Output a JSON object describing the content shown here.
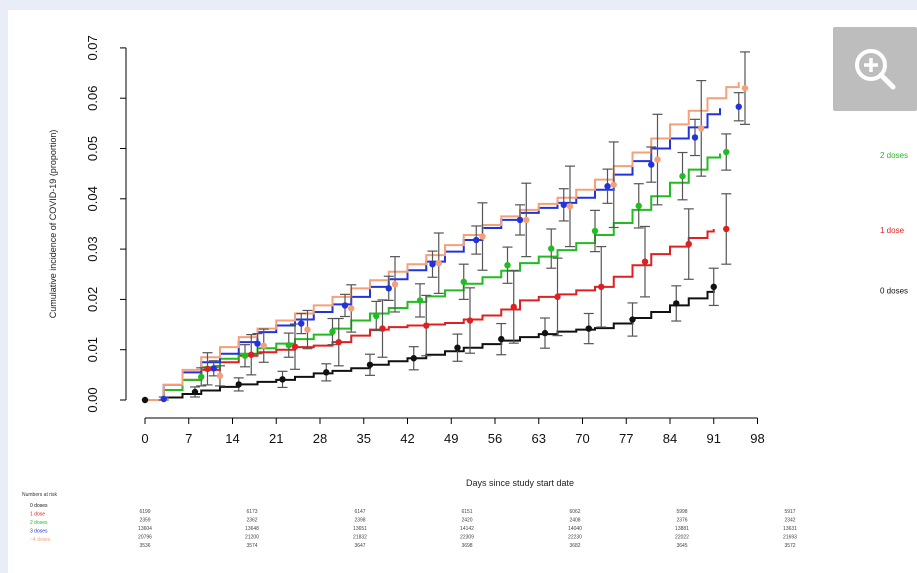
{
  "chart_data": {
    "type": "line",
    "title": "",
    "xlabel": "Days since study start date",
    "ylabel": "Cumulative incidence of COVID-19 (proportion)",
    "xlim": [
      0,
      98
    ],
    "ylim": [
      0,
      0.07
    ],
    "x_ticks": [
      0,
      7,
      14,
      21,
      28,
      35,
      42,
      49,
      56,
      63,
      70,
      77,
      84,
      91,
      98
    ],
    "y_ticks": [
      "0.00",
      "0.01",
      "0.02",
      "0.03",
      "0.04",
      "0.05",
      "0.06",
      "0.07"
    ],
    "grid": false,
    "legend": "end-of-line labels",
    "series": [
      {
        "name": "0 doses",
        "color": "#111111",
        "x": [
          0,
          3,
          6,
          9,
          12,
          15,
          18,
          21,
          24,
          27,
          30,
          33,
          36,
          39,
          42,
          45,
          48,
          51,
          54,
          57,
          60,
          63,
          66,
          69,
          72,
          75,
          78,
          81,
          84,
          87,
          90,
          91
        ],
        "y": [
          0,
          0.0005,
          0.0012,
          0.0019,
          0.0026,
          0.0031,
          0.0036,
          0.004,
          0.0046,
          0.0053,
          0.0058,
          0.0063,
          0.007,
          0.0077,
          0.0083,
          0.009,
          0.0097,
          0.0104,
          0.0111,
          0.0118,
          0.0125,
          0.0131,
          0.0136,
          0.014,
          0.0143,
          0.0152,
          0.0163,
          0.0175,
          0.0188,
          0.0202,
          0.0215,
          0.022
        ],
        "points": [
          {
            "x": 0,
            "y": 0,
            "lo": 0,
            "hi": 0
          },
          {
            "x": 8,
            "y": 0.0016,
            "lo": 0.0006,
            "hi": 0.0026
          },
          {
            "x": 15,
            "y": 0.0031,
            "lo": 0.0018,
            "hi": 0.0044
          },
          {
            "x": 22,
            "y": 0.0041,
            "lo": 0.0025,
            "hi": 0.0057
          },
          {
            "x": 29,
            "y": 0.0055,
            "lo": 0.0038,
            "hi": 0.0072
          },
          {
            "x": 36,
            "y": 0.007,
            "lo": 0.0049,
            "hi": 0.0091
          },
          {
            "x": 43,
            "y": 0.0083,
            "lo": 0.006,
            "hi": 0.0106
          },
          {
            "x": 50,
            "y": 0.0104,
            "lo": 0.0077,
            "hi": 0.0131
          },
          {
            "x": 57,
            "y": 0.0121,
            "lo": 0.009,
            "hi": 0.0152
          },
          {
            "x": 64,
            "y": 0.0133,
            "lo": 0.0103,
            "hi": 0.0163
          },
          {
            "x": 71,
            "y": 0.0142,
            "lo": 0.0112,
            "hi": 0.0172
          },
          {
            "x": 78,
            "y": 0.016,
            "lo": 0.0127,
            "hi": 0.0193
          },
          {
            "x": 85,
            "y": 0.0192,
            "lo": 0.0157,
            "hi": 0.0227
          },
          {
            "x": 91,
            "y": 0.0225,
            "lo": 0.0188,
            "hi": 0.0262
          }
        ]
      },
      {
        "name": "1 dose",
        "color": "#e02020",
        "x": [
          0,
          3,
          6,
          9,
          12,
          15,
          18,
          21,
          24,
          27,
          30,
          33,
          36,
          39,
          42,
          45,
          48,
          51,
          54,
          57,
          60,
          63,
          66,
          69,
          72,
          75,
          78,
          81,
          84,
          87,
          90,
          91
        ],
        "y": [
          0,
          0.002,
          0.004,
          0.006,
          0.0075,
          0.0088,
          0.0095,
          0.01,
          0.0105,
          0.0108,
          0.0115,
          0.0128,
          0.014,
          0.0145,
          0.0148,
          0.015,
          0.0153,
          0.016,
          0.0168,
          0.018,
          0.0198,
          0.0205,
          0.021,
          0.0218,
          0.0225,
          0.0245,
          0.0268,
          0.029,
          0.0305,
          0.0322,
          0.0335,
          0.034
        ],
        "points": [
          {
            "x": 10,
            "y": 0.0062,
            "lo": 0.003,
            "hi": 0.0094
          },
          {
            "x": 17,
            "y": 0.009,
            "lo": 0.005,
            "hi": 0.013
          },
          {
            "x": 24,
            "y": 0.0106,
            "lo": 0.0061,
            "hi": 0.0151
          },
          {
            "x": 31,
            "y": 0.0115,
            "lo": 0.0068,
            "hi": 0.0162
          },
          {
            "x": 38,
            "y": 0.0142,
            "lo": 0.0085,
            "hi": 0.0199
          },
          {
            "x": 45,
            "y": 0.0148,
            "lo": 0.0088,
            "hi": 0.0208
          },
          {
            "x": 52,
            "y": 0.0158,
            "lo": 0.0093,
            "hi": 0.0223
          },
          {
            "x": 59,
            "y": 0.0185,
            "lo": 0.0113,
            "hi": 0.0257
          },
          {
            "x": 66,
            "y": 0.0205,
            "lo": 0.0128,
            "hi": 0.0282
          },
          {
            "x": 73,
            "y": 0.0225,
            "lo": 0.0145,
            "hi": 0.0305
          },
          {
            "x": 80,
            "y": 0.0275,
            "lo": 0.0205,
            "hi": 0.0345
          },
          {
            "x": 87,
            "y": 0.031,
            "lo": 0.024,
            "hi": 0.038
          },
          {
            "x": 93,
            "y": 0.034,
            "lo": 0.027,
            "hi": 0.041
          }
        ]
      },
      {
        "name": "2 doses",
        "color": "#22bb22",
        "x": [
          0,
          3,
          6,
          9,
          12,
          15,
          18,
          21,
          24,
          27,
          30,
          33,
          36,
          39,
          42,
          45,
          48,
          51,
          54,
          57,
          60,
          63,
          66,
          69,
          72,
          75,
          78,
          81,
          84,
          87,
          90,
          92
        ],
        "y": [
          0,
          0.002,
          0.004,
          0.0065,
          0.0082,
          0.0092,
          0.0103,
          0.0112,
          0.0121,
          0.013,
          0.0142,
          0.0158,
          0.0172,
          0.0183,
          0.0195,
          0.0206,
          0.0218,
          0.0231,
          0.0244,
          0.0257,
          0.0272,
          0.0285,
          0.0298,
          0.0312,
          0.0328,
          0.0352,
          0.0378,
          0.0405,
          0.0432,
          0.0458,
          0.0482,
          0.049
        ],
        "points": [
          {
            "x": 9,
            "y": 0.0046,
            "lo": 0.0028,
            "hi": 0.0064
          },
          {
            "x": 16,
            "y": 0.0088,
            "lo": 0.0066,
            "hi": 0.011
          },
          {
            "x": 23,
            "y": 0.0109,
            "lo": 0.0085,
            "hi": 0.0133
          },
          {
            "x": 30,
            "y": 0.0136,
            "lo": 0.011,
            "hi": 0.0162
          },
          {
            "x": 37,
            "y": 0.0167,
            "lo": 0.0138,
            "hi": 0.0196
          },
          {
            "x": 44,
            "y": 0.0198,
            "lo": 0.0165,
            "hi": 0.0231
          },
          {
            "x": 51,
            "y": 0.0235,
            "lo": 0.02,
            "hi": 0.027
          },
          {
            "x": 58,
            "y": 0.0268,
            "lo": 0.0232,
            "hi": 0.0304
          },
          {
            "x": 65,
            "y": 0.0301,
            "lo": 0.0262,
            "hi": 0.034
          },
          {
            "x": 72,
            "y": 0.0336,
            "lo": 0.0295,
            "hi": 0.0377
          },
          {
            "x": 79,
            "y": 0.0386,
            "lo": 0.0342,
            "hi": 0.043
          },
          {
            "x": 86,
            "y": 0.0445,
            "lo": 0.0398,
            "hi": 0.0492
          },
          {
            "x": 93,
            "y": 0.0493,
            "lo": 0.0457,
            "hi": 0.0529
          }
        ]
      },
      {
        "name": "3 doses",
        "color": "#2233dd",
        "x": [
          0,
          3,
          6,
          9,
          12,
          15,
          18,
          21,
          24,
          27,
          30,
          33,
          36,
          39,
          42,
          45,
          48,
          51,
          54,
          57,
          60,
          63,
          66,
          69,
          72,
          75,
          78,
          81,
          84,
          87,
          90,
          92
        ],
        "y": [
          0,
          0.003,
          0.0055,
          0.0075,
          0.0092,
          0.0115,
          0.0135,
          0.0148,
          0.016,
          0.0175,
          0.019,
          0.0205,
          0.0225,
          0.024,
          0.0258,
          0.0275,
          0.0295,
          0.0318,
          0.0342,
          0.0358,
          0.0372,
          0.0382,
          0.0392,
          0.0402,
          0.0418,
          0.0448,
          0.0475,
          0.05,
          0.052,
          0.0542,
          0.0568,
          0.058
        ],
        "points": [
          {
            "x": 3,
            "y": 0.0002,
            "lo": 0,
            "hi": 0.0006
          },
          {
            "x": 11,
            "y": 0.0063,
            "lo": 0.0048,
            "hi": 0.0078
          },
          {
            "x": 18,
            "y": 0.0112,
            "lo": 0.0092,
            "hi": 0.0132
          },
          {
            "x": 25,
            "y": 0.0152,
            "lo": 0.0132,
            "hi": 0.0172
          },
          {
            "x": 32,
            "y": 0.0188,
            "lo": 0.0166,
            "hi": 0.021
          },
          {
            "x": 39,
            "y": 0.0222,
            "lo": 0.0198,
            "hi": 0.0246
          },
          {
            "x": 46,
            "y": 0.027,
            "lo": 0.0244,
            "hi": 0.0296
          },
          {
            "x": 53,
            "y": 0.0318,
            "lo": 0.029,
            "hi": 0.0346
          },
          {
            "x": 60,
            "y": 0.0358,
            "lo": 0.0328,
            "hi": 0.0388
          },
          {
            "x": 67,
            "y": 0.0388,
            "lo": 0.0356,
            "hi": 0.042
          },
          {
            "x": 74,
            "y": 0.0425,
            "lo": 0.0391,
            "hi": 0.0459
          },
          {
            "x": 81,
            "y": 0.0468,
            "lo": 0.0433,
            "hi": 0.0503
          },
          {
            "x": 88,
            "y": 0.0522,
            "lo": 0.0486,
            "hi": 0.0558
          },
          {
            "x": 95,
            "y": 0.0583,
            "lo": 0.0555,
            "hi": 0.0611
          }
        ]
      },
      {
        "name": "",
        "color": "#f4a07a",
        "x": [
          0,
          3,
          6,
          9,
          12,
          15,
          18,
          21,
          24,
          27,
          30,
          33,
          36,
          39,
          42,
          45,
          48,
          51,
          54,
          57,
          60,
          63,
          66,
          69,
          72,
          75,
          78,
          81,
          84,
          87,
          90,
          93,
          95
        ],
        "y": [
          0,
          0.003,
          0.006,
          0.0085,
          0.0105,
          0.0125,
          0.0142,
          0.0158,
          0.0172,
          0.0188,
          0.0205,
          0.0222,
          0.0238,
          0.0255,
          0.027,
          0.0288,
          0.0308,
          0.0328,
          0.0348,
          0.0365,
          0.0378,
          0.039,
          0.0402,
          0.0418,
          0.0438,
          0.0465,
          0.0492,
          0.052,
          0.0548,
          0.0575,
          0.06,
          0.0622,
          0.0632
        ],
        "points": [
          {
            "x": 12,
            "y": 0.0048,
            "lo": 0.0028,
            "hi": 0.0068
          },
          {
            "x": 19,
            "y": 0.0108,
            "lo": 0.0075,
            "hi": 0.0141
          },
          {
            "x": 26,
            "y": 0.014,
            "lo": 0.0102,
            "hi": 0.0178
          },
          {
            "x": 33,
            "y": 0.0182,
            "lo": 0.0135,
            "hi": 0.0229
          },
          {
            "x": 40,
            "y": 0.023,
            "lo": 0.0175,
            "hi": 0.0285
          },
          {
            "x": 47,
            "y": 0.0272,
            "lo": 0.0212,
            "hi": 0.0332
          },
          {
            "x": 54,
            "y": 0.0325,
            "lo": 0.0258,
            "hi": 0.0392
          },
          {
            "x": 61,
            "y": 0.0358,
            "lo": 0.0285,
            "hi": 0.0431
          },
          {
            "x": 68,
            "y": 0.0385,
            "lo": 0.0305,
            "hi": 0.0465
          },
          {
            "x": 75,
            "y": 0.0428,
            "lo": 0.0343,
            "hi": 0.0513
          },
          {
            "x": 82,
            "y": 0.0478,
            "lo": 0.0388,
            "hi": 0.0568
          },
          {
            "x": 89,
            "y": 0.054,
            "lo": 0.0445,
            "hi": 0.0635
          },
          {
            "x": 96,
            "y": 0.062,
            "lo": 0.0548,
            "hi": 0.0692
          }
        ]
      }
    ],
    "risk_table": {
      "title": "Numbers at risk",
      "rows": [
        {
          "label": "0 doses",
          "color": "#111111",
          "values": [
            "6199",
            "6173",
            "6147",
            "6151",
            "6062",
            "5998",
            "5917"
          ]
        },
        {
          "label": "1 dose",
          "color": "#e02020",
          "values": [
            "2359",
            "2362",
            "2398",
            "2420",
            "2408",
            "2376",
            "2342"
          ]
        },
        {
          "label": "2 doses",
          "color": "#22bb22",
          "values": [
            "13604",
            "13648",
            "13651",
            "14142",
            "14040",
            "13881",
            "13631"
          ]
        },
        {
          "label": "3 doses",
          "color": "#2233dd",
          "values": [
            "20796",
            "21200",
            "21832",
            "22309",
            "22230",
            "22022",
            "21693"
          ]
        },
        {
          "label": "~4 doses",
          "color": "#f4a07a",
          "values": [
            "3536",
            "3574",
            "3647",
            "3698",
            "3682",
            "3645",
            "3572"
          ]
        }
      ]
    }
  },
  "ui": {
    "zoom_icon": "zoom-in-icon"
  }
}
